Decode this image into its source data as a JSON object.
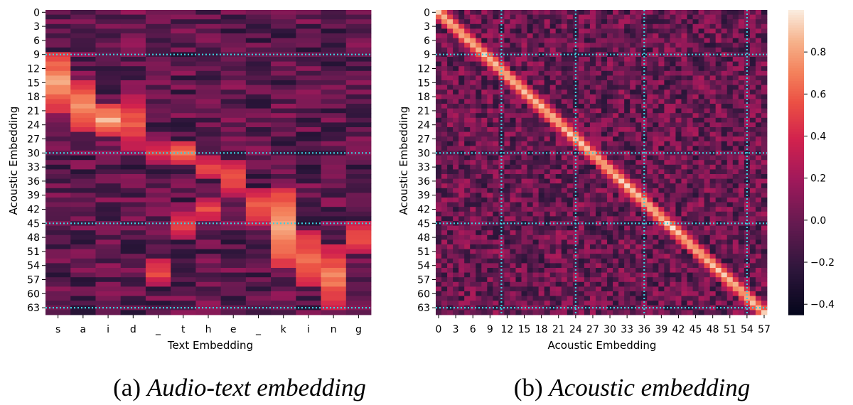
{
  "chart_data": [
    {
      "type": "heatmap",
      "id": "audio-text",
      "caption_label": "(a)",
      "caption_text": "Audio-text embedding",
      "xlabel": "Text Embedding",
      "ylabel": "Acoustic Embedding",
      "x_categories": [
        "s",
        "a",
        "i",
        "d",
        "_",
        "t",
        "h",
        "e",
        "_",
        "k",
        "i",
        "n",
        "g"
      ],
      "y_ticks": [
        "0",
        "3",
        "6",
        "9",
        "12",
        "15",
        "18",
        "21",
        "24",
        "27",
        "30",
        "33",
        "36",
        "39",
        "42",
        "45",
        "48",
        "51",
        "54",
        "57",
        "60",
        "63"
      ],
      "n_rows": 65,
      "colormap": "rocket",
      "vmin": -0.45,
      "vmax": 1.0,
      "divider_rows": [
        9,
        30,
        45,
        63
      ],
      "divider_color": "#3ad3e0",
      "active_spans": [
        {
          "col": 0,
          "rows": [
            9,
            21
          ],
          "peak": 0.85
        },
        {
          "col": 1,
          "rows": [
            15,
            25
          ],
          "peak": 0.78
        },
        {
          "col": 2,
          "rows": [
            20,
            26
          ],
          "peak": 0.85
        },
        {
          "col": 3,
          "rows": [
            18,
            29
          ],
          "peak": 0.62
        },
        {
          "col": 4,
          "rows": [
            28,
            32
          ],
          "peak": 0.48
        },
        {
          "col": 4,
          "rows": [
            53,
            58
          ],
          "peak": 0.55
        },
        {
          "col": 5,
          "rows": [
            28,
            32
          ],
          "peak": 0.72
        },
        {
          "col": 5,
          "rows": [
            43,
            48
          ],
          "peak": 0.5
        },
        {
          "col": 6,
          "rows": [
            31,
            35
          ],
          "peak": 0.55
        },
        {
          "col": 6,
          "rows": [
            40,
            44
          ],
          "peak": 0.55
        },
        {
          "col": 7,
          "rows": [
            32,
            39
          ],
          "peak": 0.6
        },
        {
          "col": 8,
          "rows": [
            38,
            45
          ],
          "peak": 0.6
        },
        {
          "col": 9,
          "rows": [
            38,
            54
          ],
          "peak": 0.9
        },
        {
          "col": 10,
          "rows": [
            47,
            58
          ],
          "peak": 0.7
        },
        {
          "col": 11,
          "rows": [
            50,
            63
          ],
          "peak": 0.72
        },
        {
          "col": 12,
          "rows": [
            45,
            51
          ],
          "peak": 0.58
        }
      ]
    },
    {
      "type": "heatmap",
      "id": "acoustic",
      "caption_label": "(b)",
      "caption_text": "Acoustic embedding",
      "xlabel": "Acoustic Embedding",
      "ylabel": "Acoustic Embedding",
      "x_ticks": [
        "0",
        "3",
        "6",
        "9",
        "12",
        "15",
        "18",
        "21",
        "24",
        "27",
        "30",
        "33",
        "36",
        "39",
        "42",
        "45",
        "48",
        "51",
        "54",
        "57"
      ],
      "y_ticks": [
        "0",
        "3",
        "6",
        "9",
        "12",
        "15",
        "18",
        "21",
        "24",
        "27",
        "30",
        "33",
        "36",
        "39",
        "42",
        "45",
        "48",
        "51",
        "54",
        "57",
        "60",
        "63"
      ],
      "n_rows": 65,
      "n_cols": 58,
      "colormap": "rocket",
      "vmin": -0.45,
      "vmax": 1.0,
      "divider_rows": [
        9,
        30,
        45,
        63
      ],
      "divider_cols": [
        11,
        24,
        36,
        54
      ],
      "divider_color": "#3ad3e0",
      "diagonal_value": 0.95
    }
  ],
  "colorbar": {
    "ticks": [
      {
        "value": 0.8,
        "label": "0.8"
      },
      {
        "value": 0.6,
        "label": "0.6"
      },
      {
        "value": 0.4,
        "label": "0.4"
      },
      {
        "value": 0.2,
        "label": "0.2"
      },
      {
        "value": 0.0,
        "label": "0.0"
      },
      {
        "value": -0.2,
        "label": "−0.2"
      },
      {
        "value": -0.4,
        "label": "−0.4"
      }
    ]
  }
}
